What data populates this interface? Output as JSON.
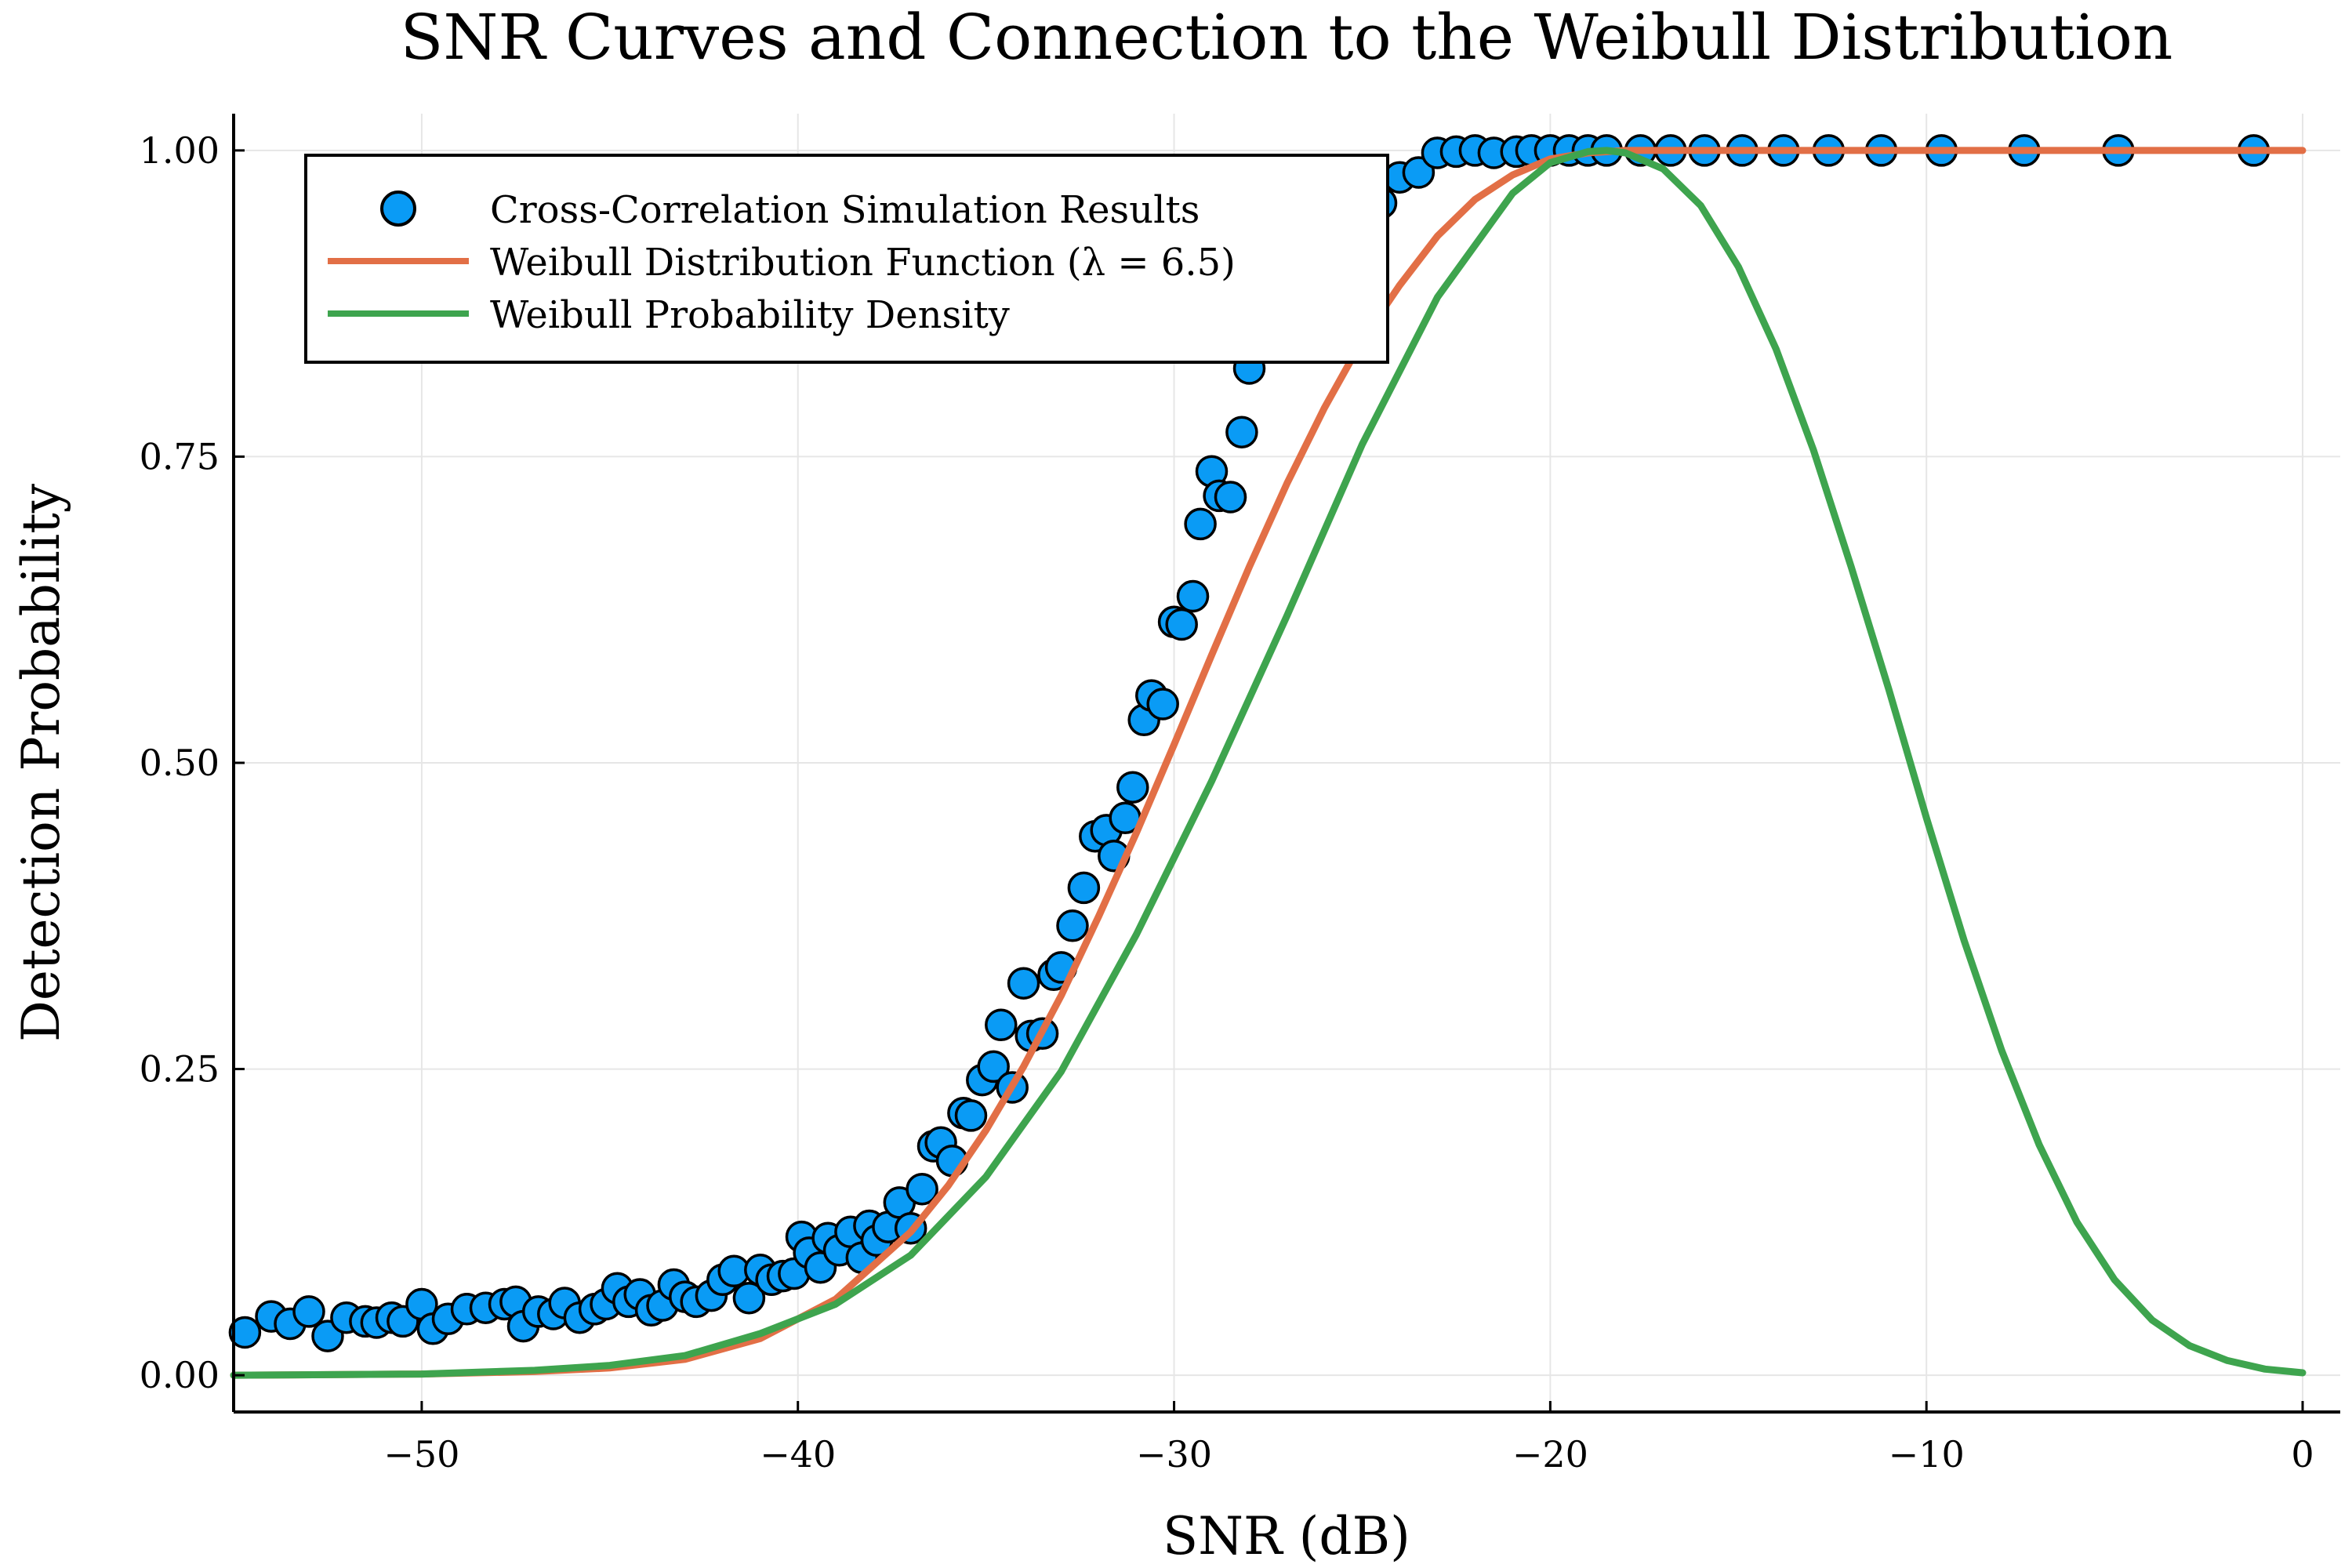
{
  "chart_data": {
    "type": "scatter",
    "title": "SNR Curves and Connection to the Weibull Distribution",
    "xlabel": "SNR (dB)",
    "ylabel": "Detection Probability",
    "xlim": [
      -55,
      1
    ],
    "ylim": [
      -0.03,
      1.03
    ],
    "x_ticks": [
      -50,
      -40,
      -30,
      -20,
      -10,
      0
    ],
    "x_tick_labels": [
      "−50",
      "−40",
      "−30",
      "−20",
      "−10",
      "0"
    ],
    "y_ticks": [
      0,
      0.25,
      0.5,
      0.75,
      1.0
    ],
    "y_tick_labels": [
      "0.00",
      "0.25",
      "0.50",
      "0.75",
      "1.00"
    ],
    "grid": true,
    "legend_position": "top-left",
    "colors": {
      "simulation": "#0a9bf5",
      "cdf": "#e26f46",
      "pdf": "#3ea44e",
      "axis": "#000000",
      "grid": "#e6e6e6"
    },
    "series": [
      {
        "name": "Cross-Correlation Simulation Results",
        "kind": "scatter",
        "x": [
          -54.7,
          -54.0,
          -53.5,
          -53.0,
          -52.5,
          -52.0,
          -51.5,
          -51.2,
          -50.8,
          -50.5,
          -50.0,
          -49.7,
          -49.3,
          -48.8,
          -48.3,
          -47.8,
          -47.5,
          -47.3,
          -46.9,
          -46.5,
          -46.2,
          -45.8,
          -45.4,
          -45.1,
          -44.8,
          -44.5,
          -44.2,
          -43.9,
          -43.6,
          -43.3,
          -43.0,
          -42.7,
          -42.3,
          -42.0,
          -41.7,
          -41.3,
          -41.0,
          -40.7,
          -40.4,
          -40.1,
          -39.9,
          -39.7,
          -39.4,
          -39.2,
          -38.9,
          -38.6,
          -38.3,
          -38.1,
          -37.9,
          -37.6,
          -37.3,
          -37.0,
          -36.7,
          -36.4,
          -36.2,
          -35.9,
          -35.6,
          -35.4,
          -35.1,
          -34.8,
          -34.6,
          -34.3,
          -34.0,
          -33.8,
          -33.5,
          -33.2,
          -33.0,
          -32.7,
          -32.4,
          -32.1,
          -31.8,
          -31.6,
          -31.3,
          -31.1,
          -30.8,
          -30.6,
          -30.3,
          -30.0,
          -29.8,
          -29.5,
          -29.3,
          -29.0,
          -28.8,
          -28.5,
          -28.2,
          -28.0,
          -27.7,
          -27.3,
          -27.0,
          -26.7,
          -26.5,
          -26.0,
          -25.5,
          -25.0,
          -24.5,
          -24.0,
          -23.5,
          -23.0,
          -22.5,
          -22.0,
          -21.5,
          -20.9,
          -20.5,
          -20.0,
          -19.5,
          -19.0,
          -18.5,
          -17.6,
          -16.8,
          -15.9,
          -14.9,
          -13.8,
          -12.6,
          -11.2,
          -9.6,
          -7.4,
          -4.9,
          -1.3
        ],
        "y": [
          0.035,
          0.048,
          0.042,
          0.052,
          0.032,
          0.047,
          0.044,
          0.043,
          0.047,
          0.044,
          0.058,
          0.038,
          0.046,
          0.054,
          0.055,
          0.058,
          0.06,
          0.04,
          0.052,
          0.05,
          0.059,
          0.047,
          0.054,
          0.058,
          0.071,
          0.06,
          0.066,
          0.053,
          0.057,
          0.074,
          0.064,
          0.06,
          0.065,
          0.078,
          0.085,
          0.063,
          0.086,
          0.078,
          0.081,
          0.083,
          0.113,
          0.1,
          0.088,
          0.112,
          0.102,
          0.117,
          0.096,
          0.122,
          0.11,
          0.121,
          0.141,
          0.12,
          0.152,
          0.187,
          0.19,
          0.175,
          0.214,
          0.212,
          0.241,
          0.252,
          0.286,
          0.235,
          0.32,
          0.277,
          0.279,
          0.327,
          0.333,
          0.367,
          0.398,
          0.44,
          0.445,
          0.424,
          0.455,
          0.48,
          0.535,
          0.555,
          0.548,
          0.615,
          0.613,
          0.636,
          0.695,
          0.738,
          0.718,
          0.717,
          0.77,
          0.822,
          0.856,
          0.87,
          0.897,
          0.895,
          0.905,
          0.921,
          0.931,
          0.942,
          0.957,
          0.978,
          0.982,
          0.998,
          0.999,
          1.0,
          0.998,
          0.999,
          1.0,
          1.0,
          1.0,
          1.0,
          1.0,
          1.0,
          1.0,
          1.0,
          1.0,
          1.0,
          1.0,
          1.0,
          1.0,
          1.0,
          1.0,
          1.0
        ]
      },
      {
        "name": "Weibull Distribution Function (λ = 6.5)",
        "kind": "line",
        "x": [
          -55,
          -50,
          -47,
          -45,
          -43,
          -41,
          -39,
          -37,
          -36,
          -35,
          -34,
          -33,
          -32,
          -31,
          -30,
          -29,
          -28,
          -27,
          -26,
          -25,
          -24,
          -23,
          -22,
          -21,
          -20,
          -19,
          -18,
          -15,
          -10,
          -5,
          0
        ],
        "y": [
          0.0,
          0.001,
          0.003,
          0.006,
          0.013,
          0.03,
          0.062,
          0.117,
          0.155,
          0.2,
          0.252,
          0.31,
          0.375,
          0.443,
          0.515,
          0.588,
          0.66,
          0.728,
          0.79,
          0.845,
          0.89,
          0.93,
          0.96,
          0.98,
          0.993,
          0.998,
          1.0,
          1.0,
          1.0,
          1.0,
          1.0
        ]
      },
      {
        "name": "Weibull Probability Density",
        "kind": "line",
        "x": [
          -55,
          -50,
          -47,
          -45,
          -43,
          -41,
          -39,
          -37,
          -35,
          -33,
          -31,
          -29,
          -27,
          -25,
          -23,
          -21,
          -20,
          -19,
          -18.5,
          -18,
          -17,
          -16,
          -15,
          -14,
          -13,
          -12,
          -11,
          -10,
          -9,
          -8,
          -7,
          -6,
          -5,
          -4,
          -3,
          -2,
          -1,
          0
        ],
        "y": [
          0.0,
          0.001,
          0.004,
          0.008,
          0.016,
          0.034,
          0.058,
          0.098,
          0.162,
          0.248,
          0.36,
          0.485,
          0.62,
          0.76,
          0.88,
          0.965,
          0.99,
          0.999,
          1.0,
          0.998,
          0.985,
          0.955,
          0.905,
          0.838,
          0.755,
          0.66,
          0.56,
          0.455,
          0.355,
          0.265,
          0.188,
          0.125,
          0.078,
          0.045,
          0.024,
          0.012,
          0.005,
          0.002
        ]
      }
    ]
  }
}
